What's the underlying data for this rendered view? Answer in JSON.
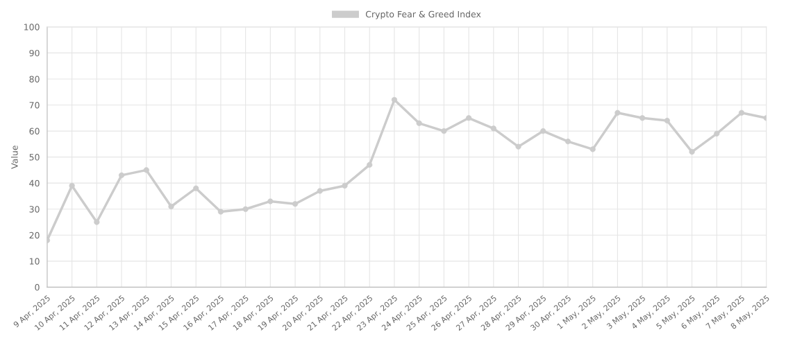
{
  "chart_data": {
    "type": "line",
    "ylabel": "Value",
    "categories": [
      "9 Apr, 2025",
      "10 Apr, 2025",
      "11 Apr, 2025",
      "12 Apr, 2025",
      "13 Apr, 2025",
      "14 Apr, 2025",
      "15 Apr, 2025",
      "16 Apr, 2025",
      "17 Apr, 2025",
      "18 Apr, 2025",
      "19 Apr, 2025",
      "20 Apr, 2025",
      "21 Apr, 2025",
      "22 Apr, 2025",
      "23 Apr, 2025",
      "24 Apr, 2025",
      "25 Apr, 2025",
      "26 Apr, 2025",
      "27 Apr, 2025",
      "28 Apr, 2025",
      "29 Apr, 2025",
      "30 Apr, 2025",
      "1 May, 2025",
      "2 May, 2025",
      "3 May, 2025",
      "4 May, 2025",
      "5 May, 2025",
      "6 May, 2025",
      "7 May, 2025",
      "8 May, 2025"
    ],
    "series": [
      {
        "name": "Crypto Fear & Greed Index",
        "color": "#cccccc",
        "values": [
          18,
          39,
          25,
          43,
          45,
          31,
          38,
          29,
          30,
          33,
          32,
          37,
          39,
          47,
          72,
          63,
          60,
          65,
          61,
          54,
          60,
          56,
          53,
          67,
          65,
          64,
          52,
          59,
          67,
          65
        ]
      }
    ],
    "ylim": [
      0,
      100
    ],
    "yticks": [
      0,
      10,
      20,
      30,
      40,
      50,
      60,
      70,
      80,
      90,
      100
    ],
    "grid": true,
    "legend": "top",
    "marker": "circle",
    "line_style": "solid"
  }
}
